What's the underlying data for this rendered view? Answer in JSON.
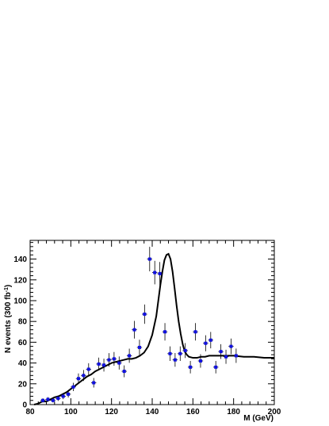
{
  "chart_data": {
    "type": "scatter",
    "xlabel": "M (GeV)",
    "ylabel_main": "N events (300 fb",
    "ylabel_sup": "-1",
    "ylabel_close": ")",
    "xlim": [
      80,
      200
    ],
    "ylim": [
      0,
      158
    ],
    "x_ticks": [
      80,
      100,
      120,
      140,
      160,
      180,
      200
    ],
    "y_ticks": [
      0,
      20,
      40,
      60,
      80,
      100,
      120,
      140
    ],
    "grid": false,
    "colors": {
      "points": "#1010e0",
      "errors": "#000000",
      "curve": "#000000"
    },
    "series": [
      {
        "kind": "points_with_errors",
        "x_halfwidth": 1.25,
        "points": [
          {
            "x": 86.25,
            "y": 4,
            "err": 2
          },
          {
            "x": 88.75,
            "y": 5,
            "err": 2.2
          },
          {
            "x": 91.25,
            "y": 4,
            "err": 2
          },
          {
            "x": 93.75,
            "y": 6,
            "err": 2.5
          },
          {
            "x": 96.25,
            "y": 8,
            "err": 2.8
          },
          {
            "x": 98.75,
            "y": 10,
            "err": 3.2
          },
          {
            "x": 101.25,
            "y": 17,
            "err": 4
          },
          {
            "x": 103.75,
            "y": 25,
            "err": 5
          },
          {
            "x": 106.25,
            "y": 28,
            "err": 5.3
          },
          {
            "x": 108.75,
            "y": 34,
            "err": 5.8
          },
          {
            "x": 111.25,
            "y": 21,
            "err": 4.6
          },
          {
            "x": 113.75,
            "y": 39,
            "err": 6.2
          },
          {
            "x": 116.25,
            "y": 38,
            "err": 6.2
          },
          {
            "x": 118.75,
            "y": 43,
            "err": 6.5
          },
          {
            "x": 121.25,
            "y": 44,
            "err": 6.6
          },
          {
            "x": 123.75,
            "y": 40,
            "err": 6.3
          },
          {
            "x": 126.25,
            "y": 32,
            "err": 5.7
          },
          {
            "x": 128.75,
            "y": 47,
            "err": 6.8
          },
          {
            "x": 131.25,
            "y": 72,
            "err": 8.5
          },
          {
            "x": 133.75,
            "y": 55,
            "err": 7.4
          },
          {
            "x": 136.25,
            "y": 87,
            "err": 9.3
          },
          {
            "x": 138.75,
            "y": 140,
            "err": 11.8
          },
          {
            "x": 141.25,
            "y": 127,
            "err": 11.3
          },
          {
            "x": 143.75,
            "y": 126,
            "err": 11.2
          },
          {
            "x": 146.25,
            "y": 70,
            "err": 8.4
          },
          {
            "x": 148.75,
            "y": 49,
            "err": 7
          },
          {
            "x": 151.25,
            "y": 43,
            "err": 6.6
          },
          {
            "x": 153.75,
            "y": 49,
            "err": 7
          },
          {
            "x": 156.25,
            "y": 52,
            "err": 7.2
          },
          {
            "x": 158.75,
            "y": 36,
            "err": 6
          },
          {
            "x": 161.25,
            "y": 70,
            "err": 8.4
          },
          {
            "x": 163.75,
            "y": 42,
            "err": 6.5
          },
          {
            "x": 166.25,
            "y": 59,
            "err": 7.7
          },
          {
            "x": 168.75,
            "y": 62,
            "err": 7.9
          },
          {
            "x": 171.25,
            "y": 36,
            "err": 6
          },
          {
            "x": 173.75,
            "y": 51,
            "err": 7.1
          },
          {
            "x": 176.25,
            "y": 46,
            "err": 6.8
          },
          {
            "x": 178.75,
            "y": 56,
            "err": 7.5
          },
          {
            "x": 181.25,
            "y": 47,
            "err": 6.9
          }
        ]
      },
      {
        "kind": "curve",
        "points": [
          [
            82,
            0
          ],
          [
            84,
            1
          ],
          [
            86,
            3
          ],
          [
            88,
            3
          ],
          [
            90,
            5
          ],
          [
            92,
            7
          ],
          [
            94,
            8
          ],
          [
            96,
            10
          ],
          [
            98,
            12
          ],
          [
            100,
            15
          ],
          [
            102,
            18
          ],
          [
            104,
            21
          ],
          [
            106,
            24
          ],
          [
            108,
            27
          ],
          [
            110,
            29
          ],
          [
            112,
            32
          ],
          [
            114,
            34
          ],
          [
            116,
            36
          ],
          [
            118,
            38
          ],
          [
            120,
            40
          ],
          [
            122,
            41
          ],
          [
            124,
            42
          ],
          [
            126,
            43
          ],
          [
            128,
            44
          ],
          [
            130,
            44
          ],
          [
            132,
            45
          ],
          [
            134,
            47
          ],
          [
            136,
            50
          ],
          [
            138,
            56
          ],
          [
            140,
            67
          ],
          [
            142,
            85
          ],
          [
            143,
            100
          ],
          [
            144,
            115
          ],
          [
            145,
            128
          ],
          [
            146,
            139
          ],
          [
            147,
            144
          ],
          [
            148,
            145
          ],
          [
            149,
            140
          ],
          [
            150,
            128
          ],
          [
            151,
            112
          ],
          [
            152,
            95
          ],
          [
            153,
            80
          ],
          [
            154,
            68
          ],
          [
            155,
            58
          ],
          [
            156,
            51
          ],
          [
            157,
            48
          ],
          [
            158,
            46
          ],
          [
            160,
            45
          ],
          [
            162,
            45
          ],
          [
            164,
            46
          ],
          [
            166,
            46
          ],
          [
            168,
            47
          ],
          [
            170,
            47
          ],
          [
            175,
            47
          ],
          [
            180,
            47
          ],
          [
            185,
            46
          ],
          [
            190,
            46
          ],
          [
            195,
            45
          ],
          [
            200,
            45
          ]
        ]
      }
    ]
  }
}
